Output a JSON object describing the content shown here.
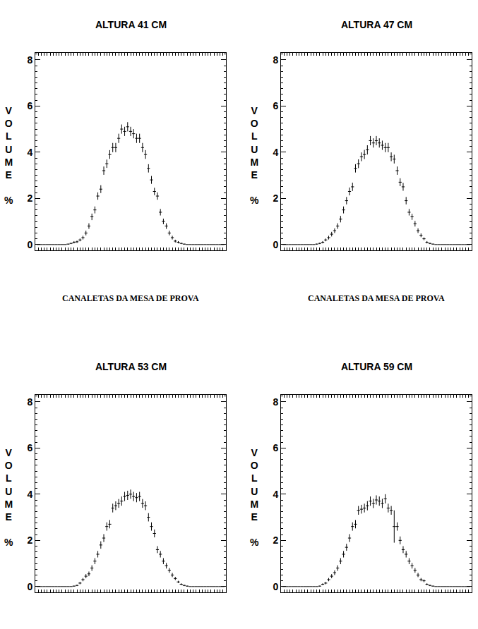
{
  "chart_data": [
    {
      "type": "scatter",
      "title": "ALTURA 41 CM",
      "y_label": "VOLUME %",
      "x_label": "CANALETAS DA MESA DE PROVA",
      "color": "#000000",
      "tick_labels": "y",
      "marker": "cross",
      "x": [
        1,
        2,
        3,
        4,
        5,
        6,
        7,
        8,
        9,
        10,
        11,
        12,
        13,
        14,
        15,
        16,
        17,
        18,
        19,
        20,
        21,
        22,
        23,
        24,
        25,
        26,
        27,
        28,
        29,
        30,
        31,
        32,
        33,
        34,
        35,
        36,
        37,
        38,
        39,
        40,
        41,
        42,
        43,
        44,
        45,
        46,
        47,
        48,
        49,
        50,
        51,
        52,
        53,
        54,
        55,
        56,
        57,
        58,
        59,
        60,
        61,
        62,
        63
      ],
      "values": [
        0,
        0,
        0,
        0,
        0,
        0,
        0,
        0,
        0,
        0,
        0.02,
        0.05,
        0.1,
        0.12,
        0.2,
        0.3,
        0.5,
        0.8,
        1.2,
        1.5,
        2.1,
        2.4,
        3.2,
        3.5,
        3.9,
        4.2,
        4.2,
        4.6,
        5.0,
        4.9,
        5.1,
        4.9,
        4.8,
        4.6,
        4.6,
        4.2,
        3.9,
        3.3,
        2.8,
        2.3,
        2.1,
        1.4,
        1.0,
        0.8,
        0.5,
        0.3,
        0.15,
        0.1,
        0.05,
        0.02,
        0,
        0,
        0,
        0,
        0,
        0,
        0,
        0,
        0,
        0,
        0,
        0,
        0
      ],
      "errors": [
        0,
        0,
        0,
        0,
        0,
        0,
        0,
        0,
        0,
        0,
        0.02,
        0.03,
        0.05,
        0.05,
        0.06,
        0.08,
        0.1,
        0.12,
        0.14,
        0.15,
        0.16,
        0.17,
        0.18,
        0.18,
        0.19,
        0.2,
        0.2,
        0.2,
        0.2,
        0.2,
        0.2,
        0.2,
        0.2,
        0.2,
        0.2,
        0.2,
        0.19,
        0.18,
        0.17,
        0.16,
        0.16,
        0.14,
        0.12,
        0.12,
        0.1,
        0.08,
        0.06,
        0.05,
        0.03,
        0.02,
        0,
        0,
        0,
        0,
        0,
        0,
        0,
        0,
        0,
        0,
        0,
        0,
        0
      ],
      "x_error": 0.5,
      "xlim": [
        0,
        64
      ],
      "ylim": [
        -0.25,
        8.3
      ],
      "xticks": [
        1,
        2,
        3,
        4,
        5,
        6,
        7,
        8,
        9,
        10,
        11,
        12,
        13,
        14,
        15,
        16,
        17,
        18,
        19,
        20,
        21,
        22,
        23,
        24,
        25,
        26,
        27,
        28,
        29,
        30,
        31,
        32,
        33,
        34,
        35,
        36,
        37,
        38,
        39,
        40,
        41,
        42,
        43,
        44,
        45,
        46,
        47,
        48,
        49,
        50,
        51,
        52,
        53,
        54,
        55,
        56,
        57,
        58,
        59,
        60,
        61,
        62,
        63
      ],
      "yticks": [
        0,
        2,
        4,
        6,
        8
      ]
    },
    {
      "type": "scatter",
      "title": "ALTURA 47 CM",
      "y_label": "VOLUME %",
      "x_label": "CANALETAS DA MESA DE PROVA",
      "color": "#000000",
      "tick_labels": "y",
      "marker": "cross",
      "x": [
        1,
        2,
        3,
        4,
        5,
        6,
        7,
        8,
        9,
        10,
        11,
        12,
        13,
        14,
        15,
        16,
        17,
        18,
        19,
        20,
        21,
        22,
        23,
        24,
        25,
        26,
        27,
        28,
        29,
        30,
        31,
        32,
        33,
        34,
        35,
        36,
        37,
        38,
        39,
        40,
        41,
        42,
        43,
        44,
        45,
        46,
        47,
        48,
        49,
        50,
        51,
        52,
        53,
        54,
        55,
        56,
        57,
        58,
        59,
        60,
        61,
        62,
        63
      ],
      "values": [
        0,
        0,
        0,
        0,
        0,
        0,
        0,
        0,
        0,
        0,
        0,
        0.02,
        0.05,
        0.1,
        0.2,
        0.3,
        0.45,
        0.6,
        0.8,
        1.1,
        1.5,
        1.9,
        2.3,
        2.5,
        3.3,
        3.5,
        3.8,
        3.9,
        4.1,
        4.5,
        4.4,
        4.5,
        4.4,
        4.3,
        4.2,
        4.2,
        3.8,
        3.7,
        3.2,
        2.7,
        2.5,
        1.9,
        1.4,
        1.2,
        0.9,
        0.6,
        0.4,
        0.25,
        0.1,
        0.05,
        0.02,
        0,
        0,
        0,
        0,
        0,
        0,
        0,
        0,
        0,
        0,
        0,
        0
      ],
      "errors": [
        0,
        0,
        0,
        0,
        0,
        0,
        0,
        0,
        0,
        0,
        0,
        0.02,
        0.03,
        0.05,
        0.06,
        0.08,
        0.1,
        0.1,
        0.12,
        0.14,
        0.15,
        0.16,
        0.17,
        0.18,
        0.18,
        0.19,
        0.19,
        0.2,
        0.2,
        0.2,
        0.2,
        0.2,
        0.2,
        0.2,
        0.2,
        0.2,
        0.19,
        0.19,
        0.18,
        0.17,
        0.17,
        0.16,
        0.14,
        0.13,
        0.12,
        0.1,
        0.08,
        0.06,
        0.05,
        0.03,
        0.02,
        0,
        0,
        0,
        0,
        0,
        0,
        0,
        0,
        0,
        0,
        0,
        0
      ],
      "x_error": 0.5,
      "xlim": [
        0,
        64
      ],
      "ylim": [
        -0.25,
        8.3
      ],
      "xticks": [
        1,
        2,
        3,
        4,
        5,
        6,
        7,
        8,
        9,
        10,
        11,
        12,
        13,
        14,
        15,
        16,
        17,
        18,
        19,
        20,
        21,
        22,
        23,
        24,
        25,
        26,
        27,
        28,
        29,
        30,
        31,
        32,
        33,
        34,
        35,
        36,
        37,
        38,
        39,
        40,
        41,
        42,
        43,
        44,
        45,
        46,
        47,
        48,
        49,
        50,
        51,
        52,
        53,
        54,
        55,
        56,
        57,
        58,
        59,
        60,
        61,
        62,
        63
      ],
      "yticks": [
        0,
        2,
        4,
        6,
        8
      ]
    },
    {
      "type": "scatter",
      "title": "ALTURA 53 CM",
      "y_label": "VOLUME %",
      "color": "#000000",
      "tick_labels": "y",
      "marker": "cross",
      "x": [
        1,
        2,
        3,
        4,
        5,
        6,
        7,
        8,
        9,
        10,
        11,
        12,
        13,
        14,
        15,
        16,
        17,
        18,
        19,
        20,
        21,
        22,
        23,
        24,
        25,
        26,
        27,
        28,
        29,
        30,
        31,
        32,
        33,
        34,
        35,
        36,
        37,
        38,
        39,
        40,
        41,
        42,
        43,
        44,
        45,
        46,
        47,
        48,
        49,
        50,
        51,
        52,
        53,
        54,
        55,
        56,
        57,
        58,
        59,
        60,
        61,
        62,
        63
      ],
      "values": [
        0,
        0,
        0,
        0,
        0,
        0,
        0,
        0,
        0,
        0,
        0,
        0,
        0.02,
        0.05,
        0.15,
        0.3,
        0.45,
        0.55,
        0.8,
        1.1,
        1.4,
        1.8,
        2.1,
        2.6,
        2.7,
        3.4,
        3.5,
        3.6,
        3.7,
        3.9,
        3.95,
        4.0,
        3.9,
        3.85,
        3.9,
        3.6,
        3.5,
        3.0,
        2.6,
        2.3,
        1.6,
        1.4,
        1.1,
        0.9,
        0.7,
        0.5,
        0.35,
        0.2,
        0.1,
        0.05,
        0.02,
        0,
        0,
        0,
        0,
        0,
        0,
        0,
        0,
        0,
        0,
        0,
        0
      ],
      "errors": [
        0,
        0,
        0,
        0,
        0,
        0,
        0,
        0,
        0,
        0,
        0,
        0,
        0.02,
        0.03,
        0.05,
        0.07,
        0.09,
        0.1,
        0.12,
        0.13,
        0.14,
        0.16,
        0.17,
        0.18,
        0.18,
        0.19,
        0.19,
        0.19,
        0.2,
        0.2,
        0.2,
        0.2,
        0.2,
        0.2,
        0.2,
        0.19,
        0.19,
        0.18,
        0.18,
        0.17,
        0.15,
        0.14,
        0.13,
        0.12,
        0.1,
        0.09,
        0.07,
        0.05,
        0.04,
        0.03,
        0.02,
        0,
        0,
        0,
        0,
        0,
        0,
        0,
        0,
        0,
        0,
        0,
        0
      ],
      "x_error": 0.5,
      "xlim": [
        0,
        64
      ],
      "ylim": [
        -0.25,
        8.3
      ],
      "xticks": [
        1,
        2,
        3,
        4,
        5,
        6,
        7,
        8,
        9,
        10,
        11,
        12,
        13,
        14,
        15,
        16,
        17,
        18,
        19,
        20,
        21,
        22,
        23,
        24,
        25,
        26,
        27,
        28,
        29,
        30,
        31,
        32,
        33,
        34,
        35,
        36,
        37,
        38,
        39,
        40,
        41,
        42,
        43,
        44,
        45,
        46,
        47,
        48,
        49,
        50,
        51,
        52,
        53,
        54,
        55,
        56,
        57,
        58,
        59,
        60,
        61,
        62,
        63
      ],
      "yticks": [
        0,
        2,
        4,
        6,
        8
      ]
    },
    {
      "type": "scatter",
      "title": "ALTURA 59 CM",
      "y_label": "VOLUME %",
      "color": "#000000",
      "tick_labels": "y",
      "marker": "cross",
      "x": [
        1,
        2,
        3,
        4,
        5,
        6,
        7,
        8,
        9,
        10,
        11,
        12,
        13,
        14,
        15,
        16,
        17,
        18,
        19,
        20,
        21,
        22,
        23,
        24,
        25,
        26,
        27,
        28,
        29,
        30,
        31,
        32,
        33,
        34,
        35,
        36,
        37,
        38,
        39,
        40,
        41,
        42,
        43,
        44,
        45,
        46,
        47,
        48,
        49,
        50,
        51,
        52,
        53,
        54,
        55,
        56,
        57,
        58,
        59,
        60,
        61,
        62,
        63
      ],
      "values": [
        0,
        0,
        0,
        0,
        0,
        0,
        0,
        0,
        0,
        0,
        0,
        0,
        0.02,
        0.1,
        0.15,
        0.3,
        0.45,
        0.6,
        0.8,
        1.1,
        1.4,
        1.7,
        2.1,
        2.6,
        2.7,
        3.3,
        3.35,
        3.4,
        3.5,
        3.7,
        3.6,
        3.75,
        3.7,
        3.6,
        3.8,
        3.4,
        3.3,
        2.6,
        2.6,
        2.0,
        1.6,
        1.4,
        1.1,
        0.9,
        0.7,
        0.5,
        0.3,
        0.25,
        0.1,
        0.05,
        0.02,
        0,
        0,
        0,
        0,
        0,
        0,
        0,
        0,
        0,
        0,
        0,
        0
      ],
      "errors": [
        0,
        0,
        0,
        0,
        0,
        0,
        0,
        0,
        0,
        0,
        0,
        0,
        0.02,
        0.04,
        0.05,
        0.07,
        0.09,
        0.1,
        0.12,
        0.13,
        0.14,
        0.15,
        0.17,
        0.18,
        0.18,
        0.19,
        0.19,
        0.19,
        0.2,
        0.2,
        0.2,
        0.2,
        0.2,
        0.2,
        0.2,
        0.19,
        0.19,
        0.7,
        0.18,
        0.17,
        0.15,
        0.14,
        0.13,
        0.12,
        0.1,
        0.09,
        0.07,
        0.06,
        0.04,
        0.03,
        0.02,
        0,
        0,
        0,
        0,
        0,
        0,
        0,
        0,
        0,
        0,
        0,
        0
      ],
      "x_error": 0.5,
      "xlim": [
        0,
        64
      ],
      "ylim": [
        -0.25,
        8.3
      ],
      "xticks": [
        1,
        2,
        3,
        4,
        5,
        6,
        7,
        8,
        9,
        10,
        11,
        12,
        13,
        14,
        15,
        16,
        17,
        18,
        19,
        20,
        21,
        22,
        23,
        24,
        25,
        26,
        27,
        28,
        29,
        30,
        31,
        32,
        33,
        34,
        35,
        36,
        37,
        38,
        39,
        40,
        41,
        42,
        43,
        44,
        45,
        46,
        47,
        48,
        49,
        50,
        51,
        52,
        53,
        54,
        55,
        56,
        57,
        58,
        59,
        60,
        61,
        62,
        63
      ],
      "yticks": [
        0,
        2,
        4,
        6,
        8
      ]
    }
  ]
}
